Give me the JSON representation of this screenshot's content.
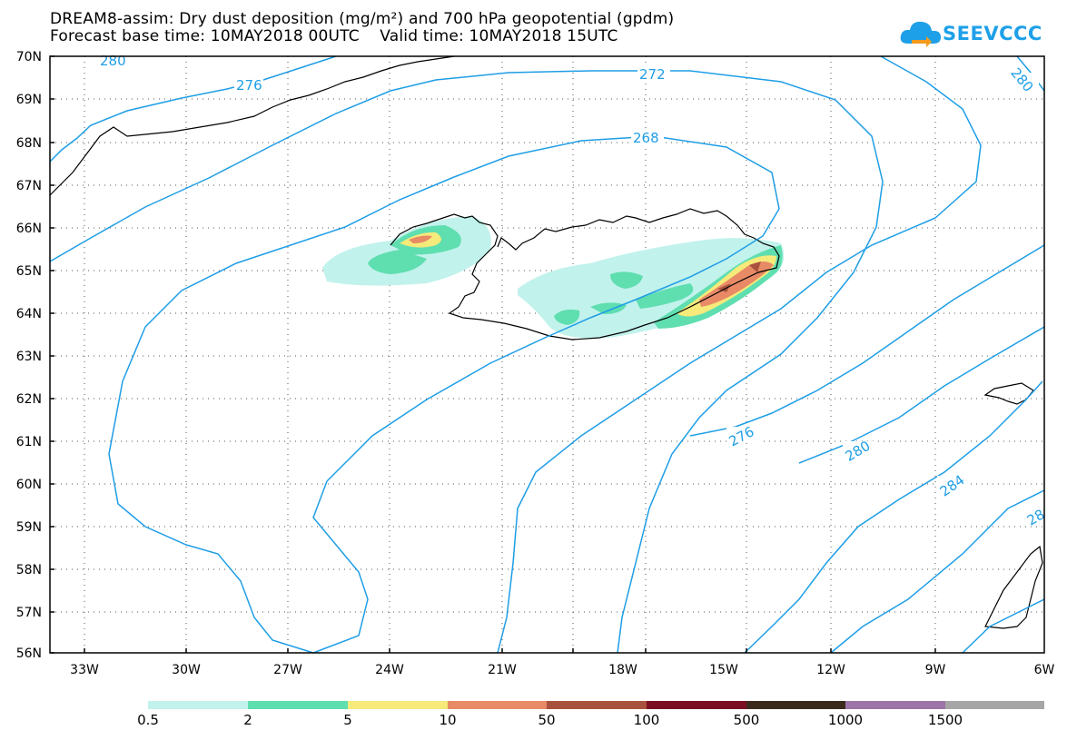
{
  "header": {
    "title_line1": "DREAM8-assim: Dry dust deposition (mg/m²) and 700 hPa geopotential (gpdm)",
    "title_line2": "Forecast base time: 10MAY2018 00UTC    Valid time: 10MAY2018 15UTC"
  },
  "logo": {
    "text": "SEEVCCC",
    "icon": "cloud-icon",
    "color": "#1ea0e8"
  },
  "map": {
    "lat_labels": [
      "70N",
      "69N",
      "68N",
      "67N",
      "66N",
      "65N",
      "64N",
      "63N",
      "62N",
      "61N",
      "60N",
      "59N",
      "58N",
      "57N",
      "56N"
    ],
    "lon_labels": [
      "33W",
      "30W",
      "27W",
      "24W",
      "21W",
      "18W",
      "15W",
      "12W",
      "9W",
      "6W"
    ],
    "contour_labels": [
      "280",
      "276",
      "272",
      "268",
      "276",
      "280",
      "284",
      "280",
      "28"
    ],
    "contour_color": "#1e9ee6"
  },
  "legend": {
    "labels": [
      "0.5",
      "2",
      "5",
      "10",
      "50",
      "100",
      "500",
      "1000",
      "1500"
    ],
    "colors": [
      "#c2f2ec",
      "#5fdeb0",
      "#f5ea7a",
      "#e88a66",
      "#a8523e",
      "#7a0f24",
      "#3b2a1c",
      "#9c74a8",
      "#a6a6a6"
    ]
  }
}
